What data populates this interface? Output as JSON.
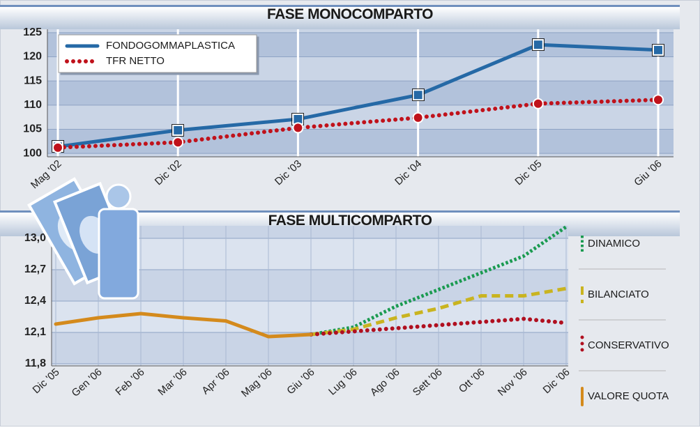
{
  "chart_data": [
    {
      "type": "line",
      "title": "FASE MONOCOMPARTO",
      "categories": [
        "Mag '02",
        "Dic '02",
        "Dic '03",
        "Dic '04",
        "Dic '05",
        "Giu '06"
      ],
      "series": [
        {
          "name": "FONDOGOMMAPLASTICA",
          "color": "#2569a6",
          "line_style": "solid",
          "marker": "square",
          "values": [
            101.4,
            104.8,
            107.1,
            112.1,
            122.5,
            121.4
          ]
        },
        {
          "name": "TFR NETTO",
          "color": "#c0121b",
          "line_style": "dotted",
          "marker": "circle",
          "values": [
            101.2,
            102.3,
            105.3,
            107.4,
            110.3,
            111.1
          ]
        }
      ],
      "ylim": [
        99.3,
        125.7
      ],
      "yticks": [
        100,
        105,
        110,
        115,
        120,
        125
      ],
      "grid": true,
      "legend": "upper left"
    },
    {
      "type": "line",
      "title": "FASE MULTICOMPARTO",
      "categories": [
        "Dic '05",
        "Gen '06",
        "Feb '06",
        "Mar '06",
        "Apr '06",
        "Mag '06",
        "Giu '06",
        "Lug '06",
        "Ago '06",
        "Sett '06",
        "Ott '06",
        "Nov '06",
        "Dic '06"
      ],
      "series": [
        {
          "name": "DINAMICO",
          "color": "#1a9a50",
          "line_style": "dotted-square",
          "values": [
            null,
            null,
            null,
            null,
            null,
            null,
            12.08,
            12.15,
            12.35,
            12.51,
            12.67,
            12.83,
            13.11
          ]
        },
        {
          "name": "BILANCIATO",
          "color": "#c9b420",
          "line_style": "dashed",
          "values": [
            null,
            null,
            null,
            null,
            null,
            null,
            12.08,
            12.13,
            12.24,
            12.33,
            12.45,
            12.45,
            12.52
          ]
        },
        {
          "name": "CONSERVATIVO",
          "color": "#b01020",
          "line_style": "dotted",
          "values": [
            null,
            null,
            null,
            null,
            null,
            null,
            12.08,
            12.11,
            12.14,
            12.17,
            12.2,
            12.23,
            12.19
          ]
        },
        {
          "name": "VALORE QUOTA",
          "color": "#d48a1c",
          "line_style": "solid",
          "values": [
            12.18,
            12.24,
            12.28,
            12.24,
            12.21,
            12.06,
            12.08,
            null,
            null,
            null,
            null,
            null,
            null
          ]
        }
      ],
      "ylim": [
        11.78,
        13.12
      ],
      "yticks": [
        {
          "value": 11.8,
          "label": "11,8"
        },
        {
          "value": 12.1,
          "label": "12,1"
        },
        {
          "value": 12.4,
          "label": "12,4"
        },
        {
          "value": 12.7,
          "label": "12,7"
        },
        {
          "value": 13.0,
          "label": "13,0"
        }
      ],
      "grid": true,
      "legend": "right"
    }
  ]
}
